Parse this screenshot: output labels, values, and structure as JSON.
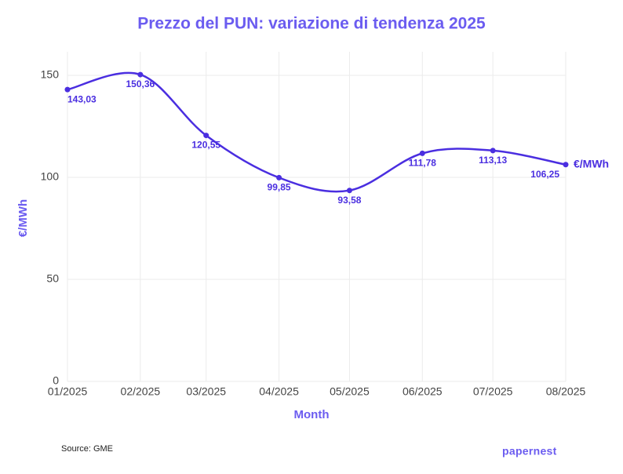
{
  "chart_data": {
    "type": "line",
    "title": "Prezzo del PUN: variazione di tendenza 2025",
    "x_label": "Month",
    "y_label": "€/MWh",
    "end_label": "€/MWh",
    "source": "Source: GME",
    "logo": "papernest",
    "x": [
      "01/2025",
      "02/2025",
      "03/2025",
      "04/2025",
      "05/2025",
      "06/2025",
      "07/2025",
      "08/2025"
    ],
    "series": [
      {
        "name": "PUN",
        "color": "#4a2ee0",
        "values": [
          143.03,
          150.36,
          120.55,
          99.85,
          93.58,
          111.78,
          113.13,
          106.25
        ],
        "value_labels": [
          "143,03",
          "150,36",
          "120,55",
          "99,85",
          "93,58",
          "111,78",
          "113,13",
          "106,25"
        ]
      }
    ],
    "ylim": [
      0,
      160
    ],
    "yticks": [
      0,
      50,
      100,
      150
    ],
    "grid": true
  }
}
